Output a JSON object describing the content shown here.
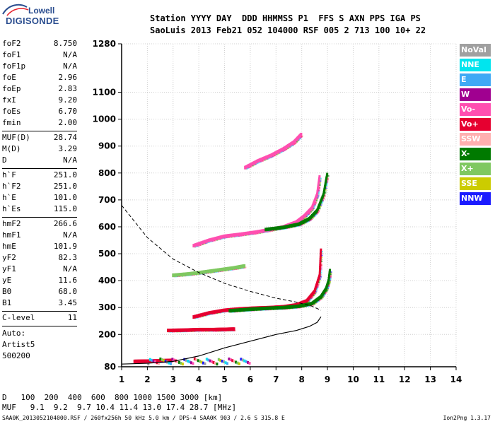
{
  "logo": {
    "line1": "Lowell",
    "line2": "DIGISONDE"
  },
  "header": {
    "line1": "Station YYYY DAY  DDD HHMMSS P1  FFS S AXN PPS IGA PS",
    "line2": "SaoLuis 2013 Feb21 052 104000 RSF 005 2 713 100 10+ 22"
  },
  "params": [
    {
      "label": "foF2",
      "value": "8.750"
    },
    {
      "label": "foF1",
      "value": "N/A"
    },
    {
      "label": "foF1p",
      "value": "N/A"
    },
    {
      "label": "foE",
      "value": "2.96"
    },
    {
      "label": "foEp",
      "value": "2.83"
    },
    {
      "label": "fxI",
      "value": "9.20"
    },
    {
      "label": "foEs",
      "value": "6.70"
    },
    {
      "label": "fmin",
      "value": "2.00"
    },
    {
      "label": "MUF(D)",
      "value": "28.74",
      "sep": true
    },
    {
      "label": "M(D)",
      "value": "3.29"
    },
    {
      "label": "D",
      "value": "N/A"
    },
    {
      "label": "h`F",
      "value": "251.0",
      "sep": true
    },
    {
      "label": "h`F2",
      "value": "251.0"
    },
    {
      "label": "h`E",
      "value": "101.0"
    },
    {
      "label": "h`Es",
      "value": "115.0"
    },
    {
      "label": "hmF2",
      "value": "266.6",
      "sep": true
    },
    {
      "label": "hmF1",
      "value": "N/A"
    },
    {
      "label": "hmE",
      "value": "101.9"
    },
    {
      "label": "yF2",
      "value": "82.3"
    },
    {
      "label": "yF1",
      "value": "N/A"
    },
    {
      "label": "yE",
      "value": "11.6"
    },
    {
      "label": "B0",
      "value": "68.0"
    },
    {
      "label": "B1",
      "value": "3.45"
    },
    {
      "label": "C-level",
      "value": "11",
      "sep": true
    }
  ],
  "auto": {
    "line1": "Auto:",
    "line2": "Artist5",
    "line3": "500200"
  },
  "footer": {
    "d_label": "D",
    "d_values": "   100  200  400  600  800 1000 1500 3000 [km]",
    "muf_label": "MUF",
    "muf_values": "   9.1  9.2  9.7 10.4 11.4 13.0 17.4 28.7 [MHz]"
  },
  "bottom_line": "SAA0K_2013052104000.RSF / 260fx256h 50 kHz 5.0 km / DPS-4 SAA0K 903 / 2.6 S 315.8 E",
  "version": "Ion2Png 1.3.17",
  "legend": [
    {
      "label": "NoVal",
      "color": "#a0a0a0"
    },
    {
      "label": "NNE",
      "color": "#00e5ee"
    },
    {
      "label": "E",
      "color": "#3fa9f5"
    },
    {
      "label": "W",
      "color": "#a00090"
    },
    {
      "label": "Vo-",
      "color": "#ff4fb0"
    },
    {
      "label": "Vo+",
      "color": "#e60030"
    },
    {
      "label": "SSW",
      "color": "#ffb0b0"
    },
    {
      "label": "X-",
      "color": "#007a00"
    },
    {
      "label": "X+",
      "color": "#7fc860"
    },
    {
      "label": "SSE",
      "color": "#cccc00"
    },
    {
      "label": "NNW",
      "color": "#1a1aff"
    }
  ],
  "chart_data": {
    "type": "scatter",
    "xlim": [
      1,
      14
    ],
    "ylim": [
      80,
      1280
    ],
    "x_ticks": [
      1,
      2,
      3,
      4,
      5,
      6,
      7,
      8,
      9,
      10,
      11,
      12,
      13,
      14
    ],
    "y_ticks": [
      80,
      200,
      300,
      400,
      500,
      600,
      700,
      800,
      900,
      1000,
      1100,
      1280
    ],
    "grid": true,
    "traces": [
      {
        "mode": "O",
        "color": "#e60030",
        "x": [
          3.8,
          4.4,
          5.0,
          5.6,
          6.2,
          6.8,
          7.3,
          7.8,
          8.2,
          8.5,
          8.7,
          8.75
        ],
        "y": [
          265,
          280,
          290,
          295,
          298,
          300,
          303,
          310,
          325,
          360,
          420,
          520
        ]
      },
      {
        "mode": "X",
        "color": "#007a00",
        "x": [
          5.2,
          5.9,
          6.6,
          7.3,
          7.9,
          8.4,
          8.75,
          8.95,
          9.05,
          9.1
        ],
        "y": [
          288,
          293,
          297,
          300,
          305,
          315,
          340,
          370,
          400,
          440
        ]
      },
      {
        "mode": "O2",
        "color": "#ff4fb0",
        "x": [
          3.8,
          4.4,
          5.0,
          5.6,
          6.2,
          6.8,
          7.3,
          7.8,
          8.1,
          8.4,
          8.6,
          8.7
        ],
        "y": [
          530,
          550,
          565,
          572,
          580,
          590,
          600,
          618,
          640,
          670,
          720,
          790
        ]
      },
      {
        "mode": "X2",
        "color": "#007a00",
        "x": [
          6.6,
          7.3,
          7.9,
          8.3,
          8.6,
          8.85,
          9.0
        ],
        "y": [
          590,
          598,
          610,
          630,
          660,
          720,
          800
        ]
      },
      {
        "mode": "O3",
        "color": "#ff4fb0",
        "x": [
          5.8,
          6.3,
          6.8,
          7.3,
          7.7,
          8.0
        ],
        "y": [
          820,
          845,
          865,
          890,
          915,
          945
        ]
      },
      {
        "mode": "Es",
        "color": "#e60030",
        "x": [
          2.8,
          3.4,
          4.0,
          4.6,
          5.0,
          5.4
        ],
        "y": [
          215,
          216,
          218,
          218,
          219,
          220
        ]
      },
      {
        "mode": "Es2",
        "color": "#7fc860",
        "x": [
          3.0,
          3.6,
          4.2,
          4.8,
          5.4,
          5.8
        ],
        "y": [
          420,
          425,
          432,
          440,
          448,
          455
        ]
      },
      {
        "mode": "E",
        "color": "#e60030",
        "x": [
          1.5,
          2.0,
          2.5,
          2.96
        ],
        "y": [
          100,
          101,
          102,
          104
        ]
      }
    ],
    "profile": {
      "x": [
        1.0,
        2.0,
        3.0,
        4.0,
        5.0,
        6.0,
        7.0,
        7.8,
        8.3,
        8.6,
        8.75
      ],
      "y": [
        90,
        93,
        100,
        120,
        150,
        175,
        200,
        215,
        230,
        245,
        266
      ]
    },
    "muf_curve": {
      "x": [
        1.0,
        1.5,
        2.0,
        3.0,
        4.0,
        5.0,
        6.0,
        7.0,
        7.8,
        8.4,
        8.75
      ],
      "y": [
        680,
        620,
        560,
        480,
        430,
        390,
        360,
        335,
        320,
        305,
        290
      ]
    }
  }
}
